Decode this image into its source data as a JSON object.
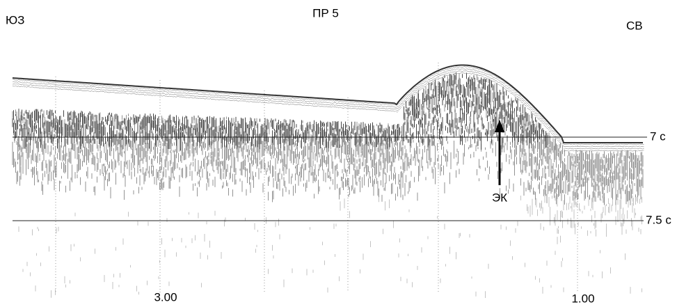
{
  "header": {
    "left": "ЮЗ",
    "title": "ПР 5",
    "right": "СВ"
  },
  "time_marks": [
    "7 с",
    "7.5 с"
  ],
  "annotation": "ЭК",
  "distance_labels": [
    "3.00",
    "1.00"
  ]
}
